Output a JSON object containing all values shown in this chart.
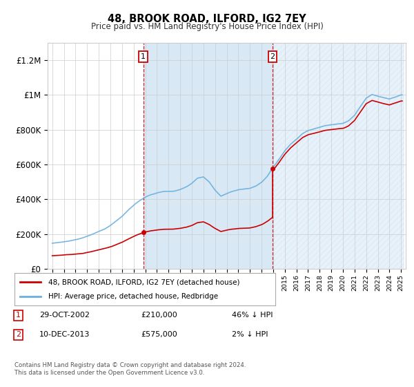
{
  "title": "48, BROOK ROAD, ILFORD, IG2 7EY",
  "subtitle": "Price paid vs. HM Land Registry's House Price Index (HPI)",
  "ylim": [
    0,
    1300000
  ],
  "yticks": [
    0,
    200000,
    400000,
    600000,
    800000,
    1000000,
    1200000
  ],
  "ytick_labels": [
    "£0",
    "£200K",
    "£400K",
    "£600K",
    "£800K",
    "£1M",
    "£1.2M"
  ],
  "sale1_date": 2002.83,
  "sale1_price": 210000,
  "sale1_text": "29-OCT-2002",
  "sale1_amount": "£210,000",
  "sale1_pct": "46% ↓ HPI",
  "sale2_date": 2013.94,
  "sale2_price": 575000,
  "sale2_text": "10-DEC-2013",
  "sale2_amount": "£575,000",
  "sale2_pct": "2% ↓ HPI",
  "hpi_line_color": "#6ab0de",
  "sale_line_color": "#cc0000",
  "shade_color": "#d8e8f5",
  "grid_color": "#cccccc",
  "background_color": "#ffffff",
  "legend_line1": "48, BROOK ROAD, ILFORD, IG2 7EY (detached house)",
  "legend_line2": "HPI: Average price, detached house, Redbridge",
  "footer1": "Contains HM Land Registry data © Crown copyright and database right 2024.",
  "footer2": "This data is licensed under the Open Government Licence v3.0.",
  "hpi_keypoints": [
    [
      1995.0,
      148000
    ],
    [
      1995.5,
      152000
    ],
    [
      1996.0,
      158000
    ],
    [
      1996.5,
      163000
    ],
    [
      1997.0,
      170000
    ],
    [
      1997.5,
      178000
    ],
    [
      1998.0,
      188000
    ],
    [
      1998.5,
      200000
    ],
    [
      1999.0,
      215000
    ],
    [
      1999.5,
      232000
    ],
    [
      2000.0,
      252000
    ],
    [
      2000.5,
      278000
    ],
    [
      2001.0,
      305000
    ],
    [
      2001.5,
      340000
    ],
    [
      2002.0,
      370000
    ],
    [
      2002.5,
      395000
    ],
    [
      2003.0,
      415000
    ],
    [
      2003.5,
      430000
    ],
    [
      2004.0,
      440000
    ],
    [
      2004.5,
      448000
    ],
    [
      2005.0,
      450000
    ],
    [
      2005.5,
      452000
    ],
    [
      2006.0,
      462000
    ],
    [
      2006.5,
      478000
    ],
    [
      2007.0,
      500000
    ],
    [
      2007.5,
      530000
    ],
    [
      2008.0,
      540000
    ],
    [
      2008.5,
      510000
    ],
    [
      2009.0,
      465000
    ],
    [
      2009.5,
      430000
    ],
    [
      2010.0,
      445000
    ],
    [
      2010.5,
      460000
    ],
    [
      2011.0,
      470000
    ],
    [
      2011.5,
      475000
    ],
    [
      2012.0,
      480000
    ],
    [
      2012.5,
      490000
    ],
    [
      2013.0,
      510000
    ],
    [
      2013.5,
      545000
    ],
    [
      2013.94,
      590000
    ],
    [
      2014.0,
      595000
    ],
    [
      2014.5,
      640000
    ],
    [
      2015.0,
      690000
    ],
    [
      2015.5,
      730000
    ],
    [
      2016.0,
      760000
    ],
    [
      2016.5,
      790000
    ],
    [
      2017.0,
      810000
    ],
    [
      2017.5,
      820000
    ],
    [
      2018.0,
      830000
    ],
    [
      2018.5,
      840000
    ],
    [
      2019.0,
      845000
    ],
    [
      2019.5,
      850000
    ],
    [
      2020.0,
      855000
    ],
    [
      2020.5,
      870000
    ],
    [
      2021.0,
      900000
    ],
    [
      2021.5,
      950000
    ],
    [
      2022.0,
      1000000
    ],
    [
      2022.5,
      1020000
    ],
    [
      2023.0,
      1010000
    ],
    [
      2023.5,
      1000000
    ],
    [
      2024.0,
      990000
    ],
    [
      2024.5,
      1000000
    ],
    [
      2025.0,
      1010000
    ]
  ]
}
